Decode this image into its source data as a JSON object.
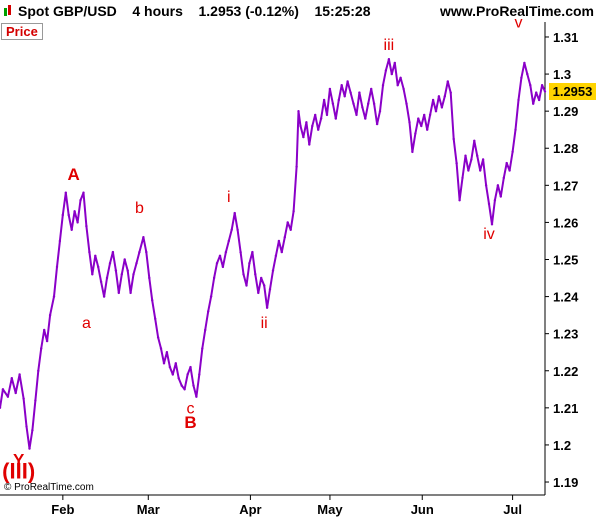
{
  "header": {
    "instrument": "Spot GBP/USD",
    "timeframe": "4 hours",
    "last_price": "1.2953",
    "change": "(-0.12%)",
    "time": "15:25:28",
    "site": "www.ProRealTime.com"
  },
  "price_tag": "Price",
  "copyright": "© ProRealTime.com",
  "last_badge": "1.2953",
  "colors": {
    "series": "#8a00c8",
    "wave_label": "#e00000",
    "badge": "#ffd400",
    "axis": "#000000"
  },
  "icons": {
    "chart-type": "candlestick-icon"
  },
  "chart_data": {
    "type": "line",
    "series": [
      {
        "values": [
          [
            0.0,
            1.21
          ],
          [
            0.3,
            1.215
          ],
          [
            0.8,
            1.213
          ],
          [
            1.2,
            1.218
          ],
          [
            1.6,
            1.214
          ],
          [
            2.0,
            1.219
          ],
          [
            2.4,
            1.2125
          ],
          [
            2.7,
            1.205
          ],
          [
            3.0,
            1.199
          ],
          [
            3.3,
            1.204
          ],
          [
            3.6,
            1.212
          ],
          [
            3.9,
            1.22
          ],
          [
            4.2,
            1.226
          ],
          [
            4.5,
            1.231
          ],
          [
            4.8,
            1.228
          ],
          [
            5.1,
            1.235
          ],
          [
            5.5,
            1.24
          ],
          [
            5.8,
            1.248
          ],
          [
            6.1,
            1.255
          ],
          [
            6.4,
            1.262
          ],
          [
            6.7,
            1.268
          ],
          [
            7.0,
            1.262
          ],
          [
            7.3,
            1.258
          ],
          [
            7.6,
            1.263
          ],
          [
            7.9,
            1.26
          ],
          [
            8.2,
            1.266
          ],
          [
            8.5,
            1.268
          ],
          [
            8.8,
            1.259
          ],
          [
            9.1,
            1.252
          ],
          [
            9.4,
            1.246
          ],
          [
            9.7,
            1.251
          ],
          [
            10.0,
            1.248
          ],
          [
            10.3,
            1.244
          ],
          [
            10.6,
            1.24
          ],
          [
            10.9,
            1.245
          ],
          [
            11.2,
            1.249
          ],
          [
            11.5,
            1.252
          ],
          [
            11.8,
            1.247
          ],
          [
            12.1,
            1.241
          ],
          [
            12.4,
            1.246
          ],
          [
            12.7,
            1.25
          ],
          [
            13.0,
            1.247
          ],
          [
            13.3,
            1.241
          ],
          [
            13.6,
            1.246
          ],
          [
            13.9,
            1.249
          ],
          [
            14.2,
            1.252
          ],
          [
            14.6,
            1.256
          ],
          [
            14.9,
            1.252
          ],
          [
            15.2,
            1.245
          ],
          [
            15.5,
            1.239
          ],
          [
            15.8,
            1.234
          ],
          [
            16.1,
            1.229
          ],
          [
            16.4,
            1.226
          ],
          [
            16.7,
            1.222
          ],
          [
            17.0,
            1.225
          ],
          [
            17.3,
            1.221
          ],
          [
            17.6,
            1.219
          ],
          [
            17.9,
            1.222
          ],
          [
            18.2,
            1.218
          ],
          [
            18.5,
            1.216
          ],
          [
            18.8,
            1.215
          ],
          [
            19.1,
            1.219
          ],
          [
            19.4,
            1.221
          ],
          [
            19.7,
            1.216
          ],
          [
            20.0,
            1.213
          ],
          [
            20.3,
            1.219
          ],
          [
            20.6,
            1.226
          ],
          [
            20.9,
            1.231
          ],
          [
            21.2,
            1.236
          ],
          [
            21.5,
            1.24
          ],
          [
            21.8,
            1.245
          ],
          [
            22.1,
            1.249
          ],
          [
            22.4,
            1.251
          ],
          [
            22.7,
            1.248
          ],
          [
            23.0,
            1.252
          ],
          [
            23.3,
            1.255
          ],
          [
            23.6,
            1.258
          ],
          [
            23.9,
            1.2625
          ],
          [
            24.2,
            1.258
          ],
          [
            24.5,
            1.252
          ],
          [
            24.8,
            1.246
          ],
          [
            25.1,
            1.243
          ],
          [
            25.4,
            1.249
          ],
          [
            25.7,
            1.252
          ],
          [
            26.0,
            1.246
          ],
          [
            26.3,
            1.241
          ],
          [
            26.6,
            1.245
          ],
          [
            26.9,
            1.243
          ],
          [
            27.2,
            1.237
          ],
          [
            27.5,
            1.242
          ],
          [
            27.8,
            1.247
          ],
          [
            28.1,
            1.251
          ],
          [
            28.4,
            1.255
          ],
          [
            28.7,
            1.252
          ],
          [
            29.0,
            1.256
          ],
          [
            29.3,
            1.26
          ],
          [
            29.6,
            1.258
          ],
          [
            29.9,
            1.263
          ],
          [
            30.2,
            1.275
          ],
          [
            30.4,
            1.29
          ],
          [
            30.6,
            1.286
          ],
          [
            30.9,
            1.283
          ],
          [
            31.2,
            1.287
          ],
          [
            31.5,
            1.281
          ],
          [
            31.8,
            1.286
          ],
          [
            32.1,
            1.289
          ],
          [
            32.4,
            1.285
          ],
          [
            32.7,
            1.288
          ],
          [
            33.0,
            1.293
          ],
          [
            33.3,
            1.289
          ],
          [
            33.6,
            1.296
          ],
          [
            33.9,
            1.292
          ],
          [
            34.2,
            1.288
          ],
          [
            34.5,
            1.293
          ],
          [
            34.8,
            1.297
          ],
          [
            35.1,
            1.294
          ],
          [
            35.4,
            1.298
          ],
          [
            35.7,
            1.295
          ],
          [
            36.0,
            1.292
          ],
          [
            36.3,
            1.289
          ],
          [
            36.6,
            1.295
          ],
          [
            36.9,
            1.291
          ],
          [
            37.2,
            1.288
          ],
          [
            37.5,
            1.292
          ],
          [
            37.8,
            1.296
          ],
          [
            38.1,
            1.292
          ],
          [
            38.4,
            1.2865
          ],
          [
            38.7,
            1.29
          ],
          [
            39.0,
            1.297
          ],
          [
            39.3,
            1.301
          ],
          [
            39.6,
            1.304
          ],
          [
            39.9,
            1.3
          ],
          [
            40.2,
            1.303
          ],
          [
            40.5,
            1.297
          ],
          [
            40.8,
            1.299
          ],
          [
            41.1,
            1.296
          ],
          [
            41.4,
            1.292
          ],
          [
            41.7,
            1.287
          ],
          [
            42.0,
            1.279
          ],
          [
            42.3,
            1.284
          ],
          [
            42.6,
            1.288
          ],
          [
            42.9,
            1.286
          ],
          [
            43.2,
            1.289
          ],
          [
            43.5,
            1.285
          ],
          [
            43.8,
            1.289
          ],
          [
            44.1,
            1.293
          ],
          [
            44.4,
            1.29
          ],
          [
            44.7,
            1.294
          ],
          [
            45.0,
            1.291
          ],
          [
            45.3,
            1.294
          ],
          [
            45.6,
            1.298
          ],
          [
            45.9,
            1.295
          ],
          [
            46.2,
            1.2825
          ],
          [
            46.5,
            1.276
          ],
          [
            46.8,
            1.266
          ],
          [
            47.1,
            1.272
          ],
          [
            47.4,
            1.278
          ],
          [
            47.7,
            1.274
          ],
          [
            48.0,
            1.277
          ],
          [
            48.3,
            1.282
          ],
          [
            48.6,
            1.278
          ],
          [
            48.9,
            1.274
          ],
          [
            49.2,
            1.277
          ],
          [
            49.5,
            1.27
          ],
          [
            49.8,
            1.265
          ],
          [
            50.1,
            1.2595
          ],
          [
            50.4,
            1.266
          ],
          [
            50.7,
            1.27
          ],
          [
            51.0,
            1.267
          ],
          [
            51.3,
            1.272
          ],
          [
            51.6,
            1.276
          ],
          [
            51.9,
            1.274
          ],
          [
            52.2,
            1.279
          ],
          [
            52.5,
            1.285
          ],
          [
            52.8,
            1.293
          ],
          [
            53.1,
            1.299
          ],
          [
            53.4,
            1.303
          ],
          [
            53.7,
            1.3
          ],
          [
            54.0,
            1.297
          ],
          [
            54.3,
            1.292
          ],
          [
            54.6,
            1.295
          ],
          [
            54.9,
            1.293
          ],
          [
            55.2,
            1.297
          ],
          [
            55.5,
            1.2953
          ]
        ]
      }
    ],
    "x_ticks": [
      {
        "label": "Feb",
        "x": 6.4
      },
      {
        "label": "Mar",
        "x": 15.1
      },
      {
        "label": "Apr",
        "x": 25.5
      },
      {
        "label": "May",
        "x": 33.6
      },
      {
        "label": "Jun",
        "x": 43.0
      },
      {
        "label": "Jul",
        "x": 52.2
      }
    ],
    "y_ticks": [
      1.19,
      1.2,
      1.21,
      1.22,
      1.23,
      1.24,
      1.25,
      1.26,
      1.27,
      1.28,
      1.29,
      1.3,
      1.31
    ],
    "y_tick_labels": [
      "1.19",
      "1.2",
      "1.21",
      "1.22",
      "1.23",
      "1.24",
      "1.25",
      "1.26",
      "1.27",
      "1.28",
      "1.29",
      "1.3",
      "1.31"
    ],
    "xlim": [
      0,
      55.5
    ],
    "ylim": [
      1.1865,
      1.3135
    ],
    "grid": false,
    "annotations": [
      {
        "text": "A",
        "x": 7.5,
        "y": 1.2715,
        "bold": true,
        "size": "large"
      },
      {
        "text": "a",
        "x": 8.8,
        "y": 1.2315,
        "bold": false,
        "size": "normal"
      },
      {
        "text": "b",
        "x": 14.2,
        "y": 1.2625,
        "bold": false,
        "size": "normal"
      },
      {
        "text": "c",
        "x": 19.4,
        "y": 1.2085,
        "bold": false,
        "size": "normal"
      },
      {
        "text": "B",
        "x": 19.4,
        "y": 1.2045,
        "bold": true,
        "size": "large"
      },
      {
        "text": "i",
        "x": 23.3,
        "y": 1.2655,
        "bold": false,
        "size": "normal"
      },
      {
        "text": "ii",
        "x": 26.9,
        "y": 1.2315,
        "bold": false,
        "size": "normal"
      },
      {
        "text": "iii",
        "x": 39.6,
        "y": 1.3065,
        "bold": false,
        "size": "normal"
      },
      {
        "text": "iv",
        "x": 49.8,
        "y": 1.2555,
        "bold": false,
        "size": "normal"
      },
      {
        "text": "v",
        "x": 52.8,
        "y": 1.3125,
        "bold": false,
        "size": "normal"
      },
      {
        "text": "Y",
        "x": 1.9,
        "y": 1.1945,
        "bold": true,
        "size": "large"
      },
      {
        "text": "(III)",
        "x": 1.9,
        "y": 1.191,
        "bold": true,
        "size": "xlarge"
      }
    ]
  }
}
